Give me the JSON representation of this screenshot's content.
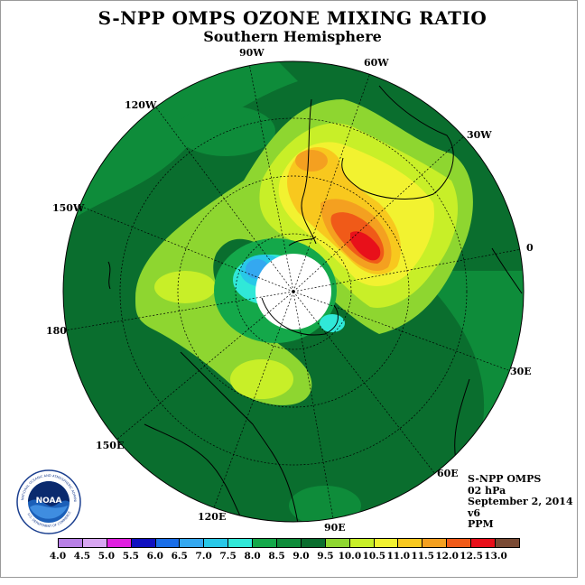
{
  "header": {
    "title": "S-NPP OMPS OZONE MIXING RATIO",
    "subtitle": "Southern Hemisphere"
  },
  "map": {
    "longitude_labels": [
      "90W",
      "60W",
      "120W",
      "30W",
      "150W",
      "0",
      "180",
      "30E",
      "150E",
      "60E",
      "120E",
      "90E"
    ],
    "ocean_color": "#1a7a2e",
    "land_outline_color": "#000000"
  },
  "info": {
    "instrument": "S-NPP OMPS",
    "level": "02 hPa",
    "date": "September 2, 2014",
    "version": "v6",
    "units": "PPM"
  },
  "logo": {
    "text": "NOAA",
    "ring_text": "NATIONAL OCEANIC AND ATMOSPHERIC ADMINISTRATION",
    "ring_text_bottom": "U.S. DEPARTMENT OF COMMERCE"
  },
  "colorbar": {
    "ticks": [
      "4.0",
      "4.5",
      "5.0",
      "5.5",
      "6.0",
      "6.5",
      "7.0",
      "7.5",
      "8.0",
      "8.5",
      "9.0",
      "9.5",
      "10.0",
      "10.5",
      "11.0",
      "11.5",
      "12.0",
      "12.5",
      "13.0"
    ],
    "colors": [
      "#b87fe6",
      "#d8a6f2",
      "#e020e0",
      "#1010c0",
      "#1a6ee8",
      "#34a8f0",
      "#28c8e8",
      "#30e8d8",
      "#14a84a",
      "#0e8c3a",
      "#0a6e2e",
      "#8ed630",
      "#c8ef28",
      "#f2f230",
      "#f8c81e",
      "#f4a020",
      "#f05a18",
      "#e8101a",
      "#7a4a34"
    ]
  }
}
